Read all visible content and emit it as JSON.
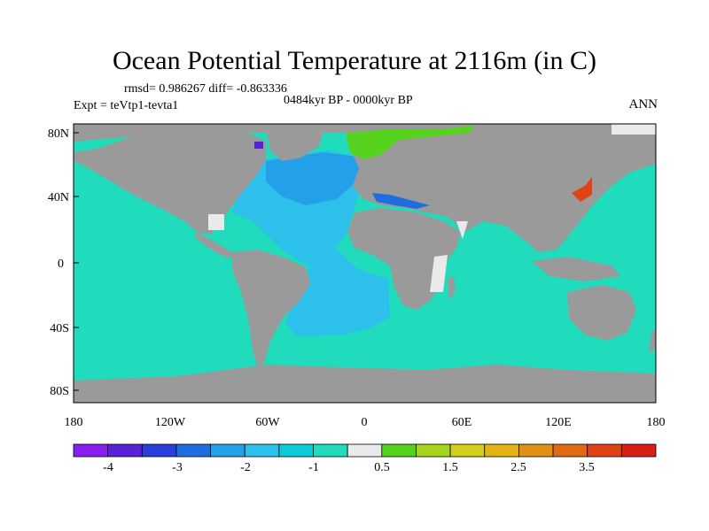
{
  "figure": {
    "title": "Ocean Potential Temperature at 2116m (in C)",
    "stats": "rmsd= 0.986267 diff= -0.863336",
    "period": "0484kyr BP - 0000kyr BP",
    "experiment": "Expt = teVtp1-tevta1",
    "season": "ANN"
  },
  "axes": {
    "lat_labels": [
      "80N",
      "40N",
      "0",
      "40S",
      "80S"
    ],
    "lon_labels": [
      "180",
      "120W",
      "60W",
      "0",
      "60E",
      "120E",
      "180"
    ]
  },
  "colorbar": {
    "colors": [
      "#8a1ef0",
      "#5a22d6",
      "#2a3ed8",
      "#1e6ee0",
      "#24a0ea",
      "#2cc0ea",
      "#0ccad6",
      "#20dcbc",
      "#eaeaea",
      "#54d21c",
      "#a6d41a",
      "#d4d01a",
      "#e2b414",
      "#e09014",
      "#e06a14",
      "#e04416",
      "#d81e16"
    ],
    "labels": [
      "-4",
      "-3",
      "-2",
      "-1",
      "0.5",
      "1.5",
      "2.5",
      "3.5"
    ]
  },
  "map_colors": {
    "land": "#9a9a9a",
    "southern_ocean": "#20dcbc",
    "pacific_indian": "#20dcbc",
    "atlantic": "#2cc0ea",
    "north_atlantic": "#24a0ea",
    "arctic_high": "#54d21c",
    "ice_missing": "#eaeaea",
    "japan_sea": "#e04416",
    "baffin": "#5a22d6",
    "med": "#1e6ee0"
  }
}
